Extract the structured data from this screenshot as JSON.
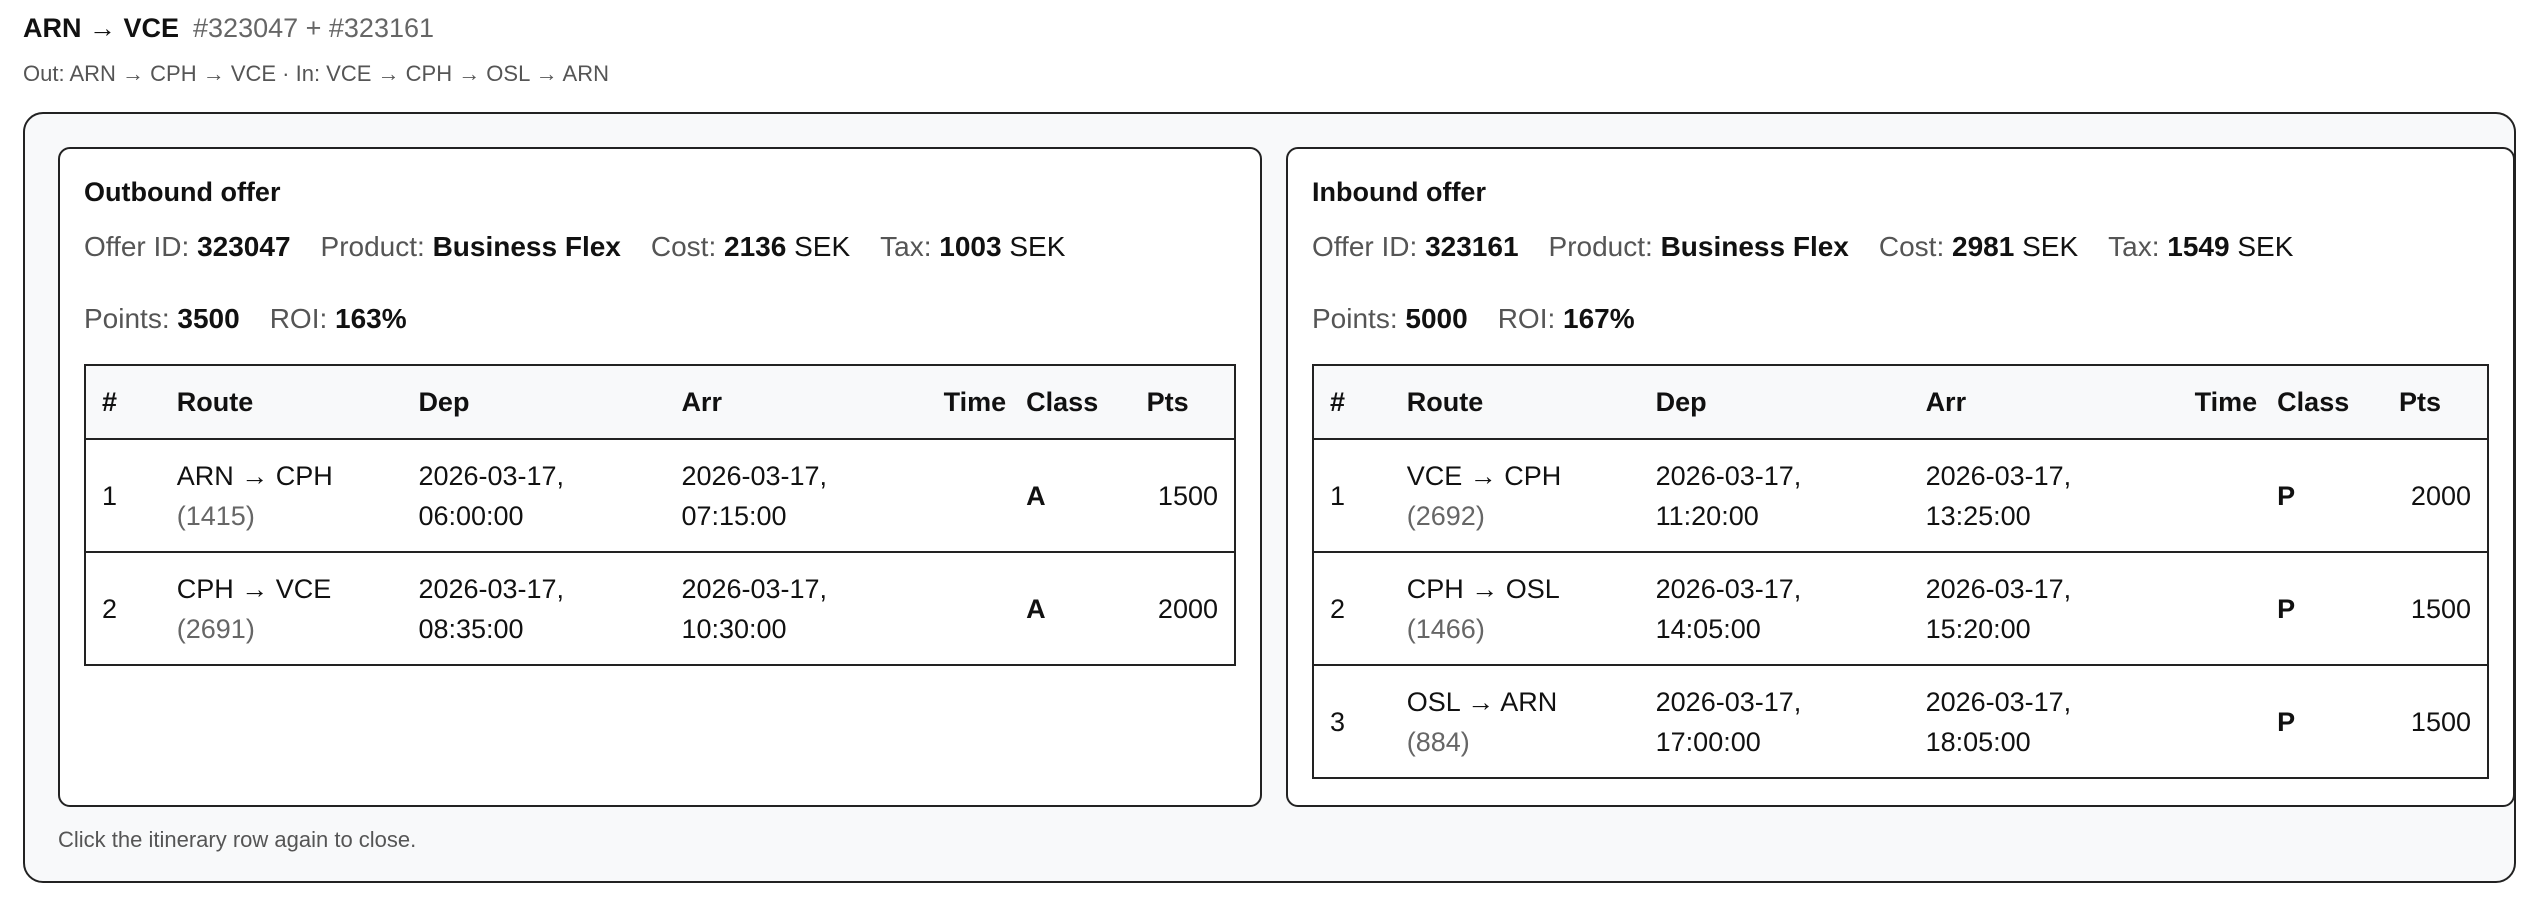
{
  "header": {
    "route": "ARN → VCE",
    "ids": "#323047 + #323161",
    "summary": "Out: ARN → CPH → VCE · In: VCE → CPH → OSL → ARN"
  },
  "labels": {
    "offer_id": "Offer ID:",
    "product": "Product:",
    "cost": "Cost:",
    "tax": "Tax:",
    "points": "Points:",
    "roi": "ROI:",
    "currency": "SEK"
  },
  "columns": [
    "#",
    "Route",
    "Dep",
    "Arr",
    "Time",
    "Class",
    "Pts"
  ],
  "outbound": {
    "title": "Outbound offer",
    "offer_id": "323047",
    "product": "Business Flex",
    "cost": "2136",
    "tax": "1003",
    "points": "3500",
    "roi": "163%",
    "segments": [
      {
        "n": "1",
        "route": "ARN → CPH",
        "flight": "(1415)",
        "dep_date": "2026-03-17,",
        "dep_time": "06:00:00",
        "arr_date": "2026-03-17,",
        "arr_time": "07:15:00",
        "time": "",
        "class": "A",
        "pts": "1500"
      },
      {
        "n": "2",
        "route": "CPH → VCE",
        "flight": "(2691)",
        "dep_date": "2026-03-17,",
        "dep_time": "08:35:00",
        "arr_date": "2026-03-17,",
        "arr_time": "10:30:00",
        "time": "",
        "class": "A",
        "pts": "2000"
      }
    ]
  },
  "inbound": {
    "title": "Inbound offer",
    "offer_id": "323161",
    "product": "Business Flex",
    "cost": "2981",
    "tax": "1549",
    "points": "5000",
    "roi": "167%",
    "segments": [
      {
        "n": "1",
        "route": "VCE → CPH",
        "flight": "(2692)",
        "dep_date": "2026-03-17,",
        "dep_time": "11:20:00",
        "arr_date": "2026-03-17,",
        "arr_time": "13:25:00",
        "time": "",
        "class": "P",
        "pts": "2000"
      },
      {
        "n": "2",
        "route": "CPH → OSL",
        "flight": "(1466)",
        "dep_date": "2026-03-17,",
        "dep_time": "14:05:00",
        "arr_date": "2026-03-17,",
        "arr_time": "15:20:00",
        "time": "",
        "class": "P",
        "pts": "1500"
      },
      {
        "n": "3",
        "route": "OSL → ARN",
        "flight": "(884)",
        "dep_date": "2026-03-17,",
        "dep_time": "17:00:00",
        "arr_date": "2026-03-17,",
        "arr_time": "18:05:00",
        "time": "",
        "class": "P",
        "pts": "1500"
      }
    ]
  },
  "footer": "Click the itinerary row again to close."
}
